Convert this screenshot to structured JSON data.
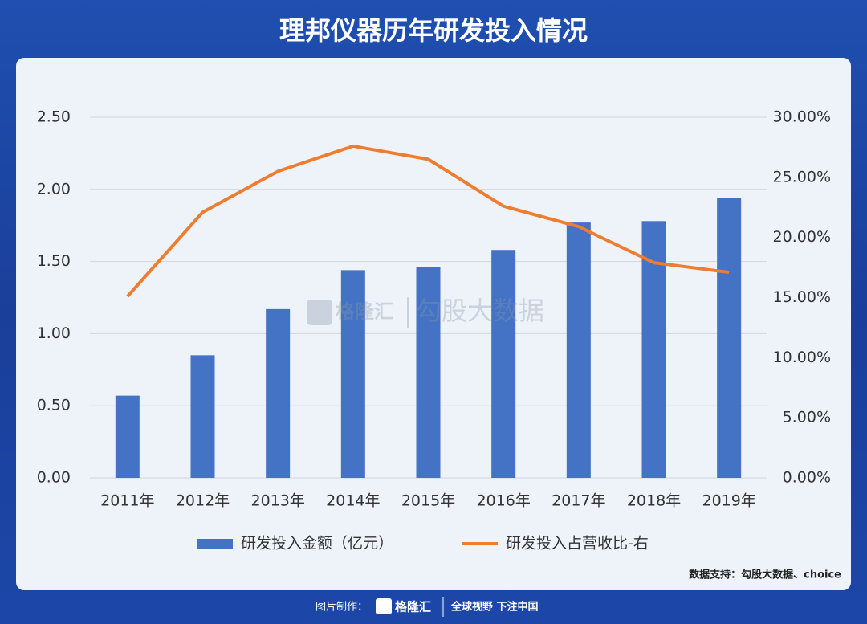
{
  "header": {
    "title": "理邦仪器历年研发投入情况"
  },
  "chart_data": {
    "type": "bar",
    "categories": [
      "2011年",
      "2012年",
      "2013年",
      "2014年",
      "2015年",
      "2016年",
      "2017年",
      "2018年",
      "2019年"
    ],
    "series": [
      {
        "name": "研发投入金额（亿元）",
        "type": "bar",
        "color": "#4472c4",
        "values": [
          0.57,
          0.85,
          1.17,
          1.44,
          1.46,
          1.58,
          1.77,
          1.78,
          1.94
        ]
      },
      {
        "name": "研发投入占营收比-右",
        "type": "line",
        "axis": "y2",
        "color": "#ed7d31",
        "values": [
          15.1,
          22.1,
          25.5,
          27.6,
          26.5,
          22.6,
          20.9,
          17.9,
          17.1
        ]
      }
    ],
    "ylim": [
      0,
      2.5
    ],
    "yticks": [
      {
        "value": 0,
        "label": "0.00"
      },
      {
        "value": 0.5,
        "label": "0.50"
      },
      {
        "value": 1,
        "label": "1.00"
      },
      {
        "value": 1.5,
        "label": "1.50"
      },
      {
        "value": 2,
        "label": "2.00"
      },
      {
        "value": 2.5,
        "label": "2.50"
      }
    ],
    "y2lim": [
      0,
      30
    ],
    "y2ticks": [
      {
        "value": 0,
        "label": "0.00%"
      },
      {
        "value": 5,
        "label": "5.00%"
      },
      {
        "value": 10,
        "label": "10.00%"
      },
      {
        "value": 15,
        "label": "15.00%"
      },
      {
        "value": 20,
        "label": "20.00%"
      },
      {
        "value": 25,
        "label": "25.00%"
      },
      {
        "value": 30,
        "label": "30.00%"
      }
    ],
    "grid": true,
    "legend": "bottom",
    "watermark": {
      "brand": "格隆汇",
      "text": "勾股大数据"
    },
    "source": "数据支持：勾股大数据、choice"
  },
  "footer": {
    "label": "图片制作：",
    "brand": "格隆汇",
    "slogan": "全球视野 下注中国"
  }
}
